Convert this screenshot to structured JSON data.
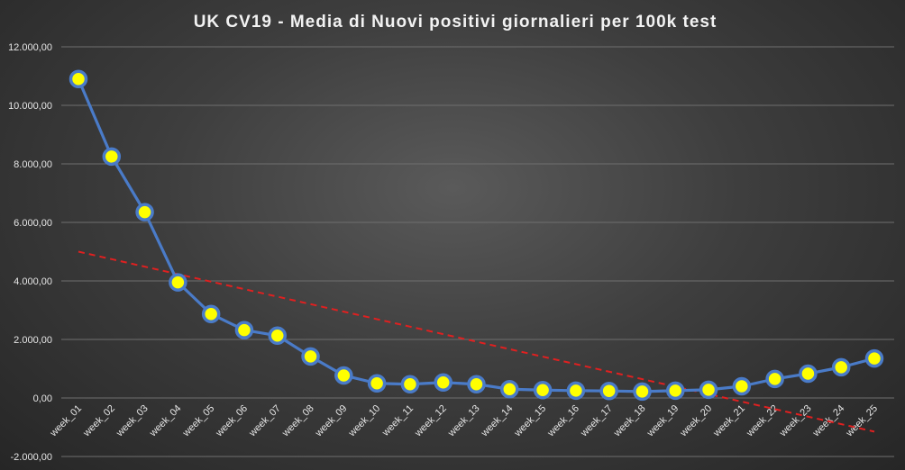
{
  "chart_data": {
    "type": "line",
    "title": "UK CV19 - Media di Nuovi positivi giornalieri per 100k test",
    "xlabel": "",
    "ylabel": "",
    "ylim": [
      -2000,
      12000
    ],
    "yticks": [
      -2000,
      0,
      2000,
      4000,
      6000,
      8000,
      10000,
      12000
    ],
    "ytick_labels": [
      "-2.000,00",
      "0,00",
      "2.000,00",
      "4.000,00",
      "6.000,00",
      "8.000,00",
      "10.000,00",
      "12.000,00"
    ],
    "grid": true,
    "legend": "none",
    "categories": [
      "week_01",
      "week_02",
      "week_03",
      "week_04",
      "week_05",
      "week_06",
      "week_07",
      "week_08",
      "week_09",
      "week_10",
      "week_11",
      "week_12",
      "week_13",
      "week_14",
      "week_15",
      "week_16",
      "week_17",
      "week_18",
      "week_19",
      "week_20",
      "week_21",
      "week_22",
      "week_23",
      "week_24",
      "week_25"
    ],
    "series": [
      {
        "values": [
          10900,
          8250,
          6350,
          3950,
          2870,
          2320,
          2130,
          1420,
          770,
          500,
          470,
          530,
          470,
          300,
          270,
          250,
          240,
          220,
          250,
          280,
          400,
          650,
          830,
          1050,
          1350
        ],
        "color": "#4a7bc8",
        "marker_color": "#ffff00"
      }
    ],
    "trendline": {
      "type": "linear",
      "start": 5000,
      "end": -1150,
      "color": "#e02020",
      "style": "dashed"
    }
  }
}
